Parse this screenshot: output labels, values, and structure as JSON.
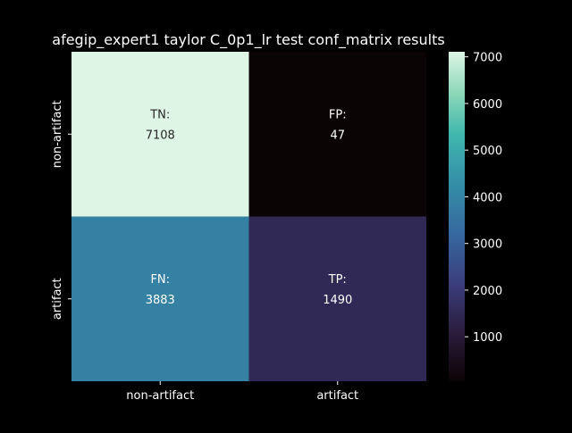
{
  "chart_data": {
    "type": "heatmap",
    "title": "afegip_expert1 taylor C_0p1_lr test conf_matrix results",
    "xlabel": "",
    "ylabel": "",
    "x_categories": [
      "non-artifact",
      "artifact"
    ],
    "y_categories": [
      "non-artifact",
      "artifact"
    ],
    "cells": [
      {
        "row": 0,
        "col": 0,
        "label": "TN:",
        "value": 7108
      },
      {
        "row": 0,
        "col": 1,
        "label": "FP:",
        "value": 47
      },
      {
        "row": 1,
        "col": 0,
        "label": "FN:",
        "value": 3883
      },
      {
        "row": 1,
        "col": 1,
        "label": "TP:",
        "value": 1490
      }
    ],
    "colorbar": {
      "colormap": "mako",
      "range": [
        47,
        7108
      ],
      "ticks": [
        1000,
        2000,
        3000,
        4000,
        5000,
        6000,
        7000
      ]
    },
    "colors": {
      "background": "#000000",
      "text": "#ffffff",
      "cell_text_dark": "#262626"
    }
  }
}
